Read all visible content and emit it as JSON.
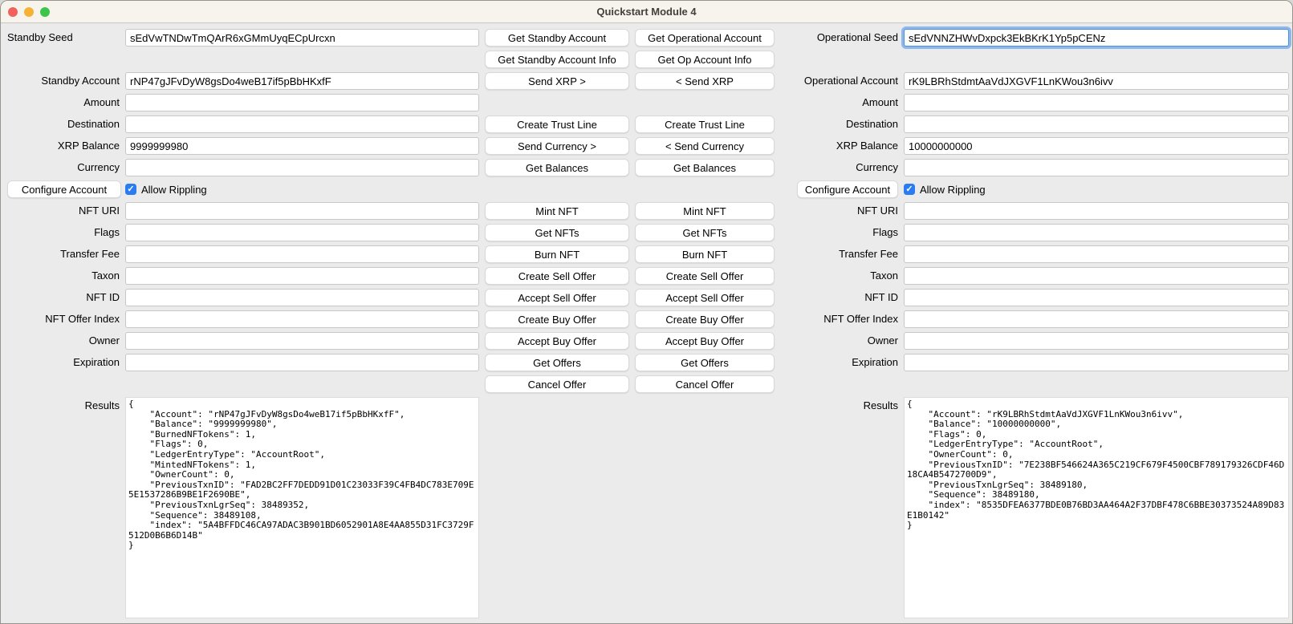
{
  "window": {
    "title": "Quickstart Module 4"
  },
  "icons": {
    "checkmark_glyph": "✓"
  },
  "colors": {
    "checkbox_blue": "#2a7cf0",
    "focus_ring_blue": "#8db8ed",
    "traffic_red": "#f2625d",
    "traffic_yellow": "#f5b235",
    "traffic_green": "#3ec449",
    "titlebar_bg": "#f7f3ed",
    "window_bg": "#ebebeb"
  },
  "standby": {
    "seed": {
      "label": "Standby Seed",
      "value": "sEdVwTNDwTmQArR6xGMmUyqECpUrcxn"
    },
    "account": {
      "label": "Standby Account",
      "value": "rNP47gJFvDyW8gsDo4weB17if5pBbHKxfF"
    },
    "amount": {
      "label": "Amount",
      "value": ""
    },
    "destination": {
      "label": "Destination",
      "value": ""
    },
    "xrp_balance": {
      "label": "XRP Balance",
      "value": "9999999980"
    },
    "currency": {
      "label": "Currency",
      "value": ""
    },
    "configure_button_label": "Configure Account",
    "allow_rippling": {
      "label": "Allow Rippling",
      "checked": true
    },
    "nft_uri": {
      "label": "NFT URI",
      "value": ""
    },
    "flags": {
      "label": "Flags",
      "value": ""
    },
    "transfer_fee": {
      "label": "Transfer Fee",
      "value": ""
    },
    "taxon": {
      "label": "Taxon",
      "value": ""
    },
    "nft_id": {
      "label": "NFT ID",
      "value": ""
    },
    "nft_offer_index": {
      "label": "NFT Offer Index",
      "value": ""
    },
    "owner": {
      "label": "Owner",
      "value": ""
    },
    "expiration": {
      "label": "Expiration",
      "value": ""
    },
    "results": {
      "label": "Results",
      "value": "{\n    \"Account\": \"rNP47gJFvDyW8gsDo4weB17if5pBbHKxfF\",\n    \"Balance\": \"9999999980\",\n    \"BurnedNFTokens\": 1,\n    \"Flags\": 0,\n    \"LedgerEntryType\": \"AccountRoot\",\n    \"MintedNFTokens\": 1,\n    \"OwnerCount\": 0,\n    \"PreviousTxnID\": \"FAD2BC2FF7DEDD91D01C23033F39C4FB4DC783E709E5E1537286B9BE1F2690BE\",\n    \"PreviousTxnLgrSeq\": 38489352,\n    \"Sequence\": 38489108,\n    \"index\": \"5A4BFFDC46CA97ADAC3B901BD6052901A8E4AA855D31FC3729F512D0B6B6D14B\"\n}"
    },
    "buttons": [
      "Get Standby Account",
      "Get Standby Account Info",
      "Send XRP >",
      "Create Trust Line",
      "Send Currency >",
      "Get Balances",
      "Mint NFT",
      "Get NFTs",
      "Burn NFT",
      "Create Sell Offer",
      "Accept Sell Offer",
      "Create Buy Offer",
      "Accept Buy Offer",
      "Get Offers",
      "Cancel Offer"
    ]
  },
  "operational": {
    "seed": {
      "label": "Operational Seed",
      "value": "sEdVNNZHWvDxpck3EkBKrK1Yp5pCENz"
    },
    "account": {
      "label": "Operational Account",
      "value": "rK9LBRhStdmtAaVdJXGVF1LnKWou3n6ivv"
    },
    "amount": {
      "label": "Amount",
      "value": ""
    },
    "destination": {
      "label": "Destination",
      "value": ""
    },
    "xrp_balance": {
      "label": "XRP Balance",
      "value": "10000000000"
    },
    "currency": {
      "label": "Currency",
      "value": ""
    },
    "configure_button_label": "Configure Account",
    "allow_rippling": {
      "label": "Allow Rippling",
      "checked": true
    },
    "nft_uri": {
      "label": "NFT URI",
      "value": ""
    },
    "flags": {
      "label": "Flags",
      "value": ""
    },
    "transfer_fee": {
      "label": "Transfer Fee",
      "value": ""
    },
    "taxon": {
      "label": "Taxon",
      "value": ""
    },
    "nft_id": {
      "label": "NFT ID",
      "value": ""
    },
    "nft_offer_index": {
      "label": "NFT Offer Index",
      "value": ""
    },
    "owner": {
      "label": "Owner",
      "value": ""
    },
    "expiration": {
      "label": "Expiration",
      "value": ""
    },
    "results": {
      "label": "Results",
      "value": "{\n    \"Account\": \"rK9LBRhStdmtAaVdJXGVF1LnKWou3n6ivv\",\n    \"Balance\": \"10000000000\",\n    \"Flags\": 0,\n    \"LedgerEntryType\": \"AccountRoot\",\n    \"OwnerCount\": 0,\n    \"PreviousTxnID\": \"7E238BF546624A365C219CF679F4500CBF789179326CDF46D18CA4B5472700D9\",\n    \"PreviousTxnLgrSeq\": 38489180,\n    \"Sequence\": 38489180,\n    \"index\": \"8535DFEA6377BDE0B76BD3AA464A2F37DBF478C6BBE30373524A89D83E1B0142\"\n}"
    },
    "buttons": [
      "Get Operational Account",
      "Get Op Account Info",
      "< Send XRP",
      "Create Trust Line",
      "< Send Currency",
      "Get Balances",
      "Mint NFT",
      "Get NFTs",
      "Burn NFT",
      "Create Sell Offer",
      "Accept Sell Offer",
      "Create Buy Offer",
      "Accept Buy Offer",
      "Get Offers",
      "Cancel Offer"
    ]
  }
}
